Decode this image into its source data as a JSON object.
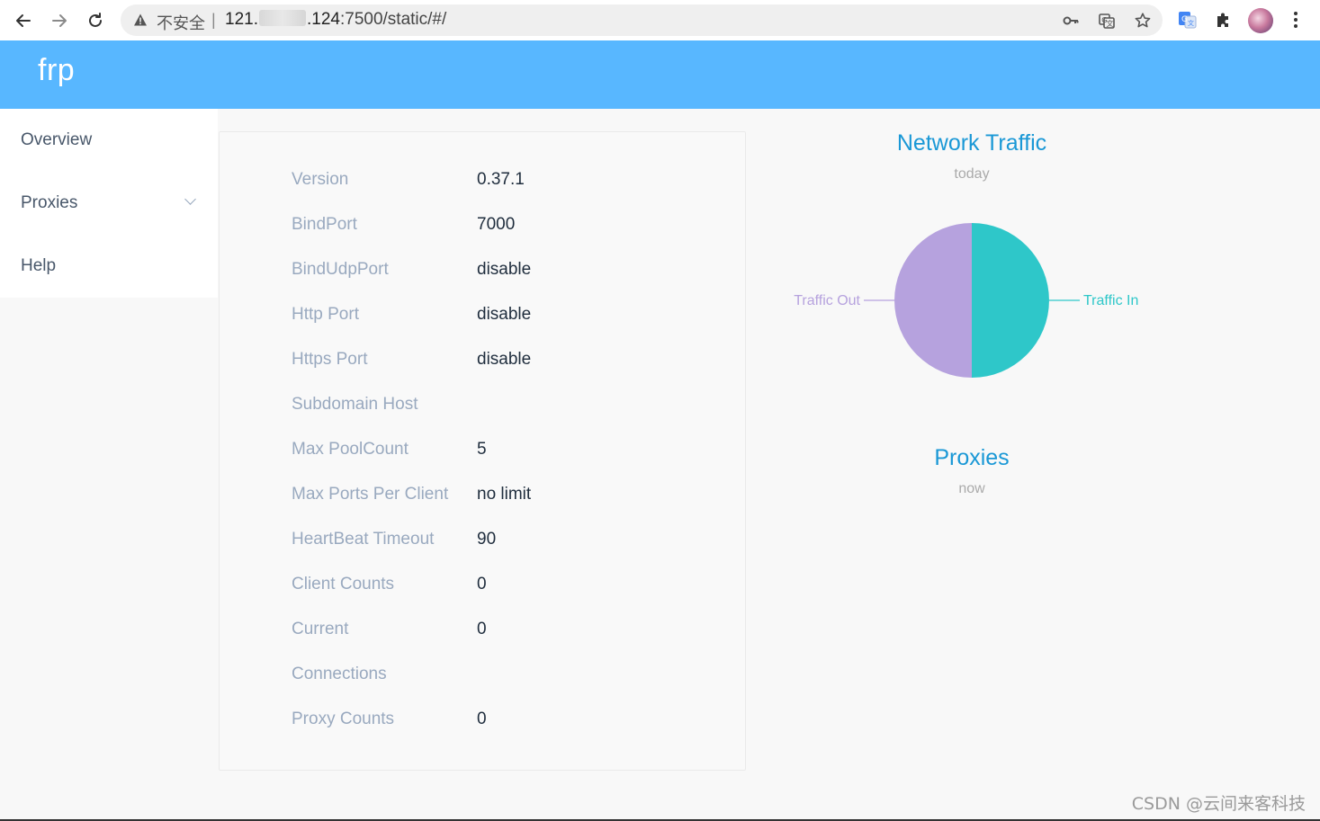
{
  "browser": {
    "security_label": "不安全",
    "separator": "|",
    "url_host_prefix": "121.",
    "url_host_suffix": ".124",
    "url_path": ":7500/static/#/",
    "icons": [
      "back-arrow-icon",
      "forward-arrow-icon",
      "reload-icon",
      "warning-triangle-icon",
      "key-icon",
      "translate-icon",
      "star-icon",
      "google-translate-icon",
      "puzzle-extension-icon",
      "avatar",
      "kebab-menu-icon"
    ]
  },
  "header": {
    "brand": "frp",
    "color": "#58b7ff"
  },
  "sidebar": {
    "items": [
      {
        "label": "Overview"
      },
      {
        "label": "Proxies",
        "expandable": true
      },
      {
        "label": "Help"
      }
    ]
  },
  "server_info": {
    "rows": [
      {
        "label": "Version",
        "value": "0.37.1"
      },
      {
        "label": "BindPort",
        "value": "7000"
      },
      {
        "label": "BindUdpPort",
        "value": "disable"
      },
      {
        "label": "Http Port",
        "value": "disable"
      },
      {
        "label": "Https Port",
        "value": "disable"
      },
      {
        "label": "Subdomain Host",
        "value": ""
      },
      {
        "label": "Max PoolCount",
        "value": "5"
      },
      {
        "label": "Max Ports Per Client",
        "value": "no limit"
      },
      {
        "label": "HeartBeat Timeout",
        "value": "90"
      },
      {
        "label": "Client Counts",
        "value": "0"
      },
      {
        "label": "Current",
        "value": "0"
      },
      {
        "label": "Connections",
        "value": ""
      },
      {
        "label": "Proxy Counts",
        "value": "0"
      }
    ]
  },
  "chart_data": [
    {
      "type": "pie",
      "title": "Network Traffic",
      "subtitle": "today",
      "slices": [
        {
          "name": "Traffic In",
          "value": 50,
          "color": "#2ec7c9"
        },
        {
          "name": "Traffic Out",
          "value": 50,
          "color": "#b6a2de"
        }
      ]
    },
    {
      "type": "pie",
      "title": "Proxies",
      "subtitle": "now",
      "slices": []
    }
  ],
  "watermark": "CSDN @云间来客科技"
}
